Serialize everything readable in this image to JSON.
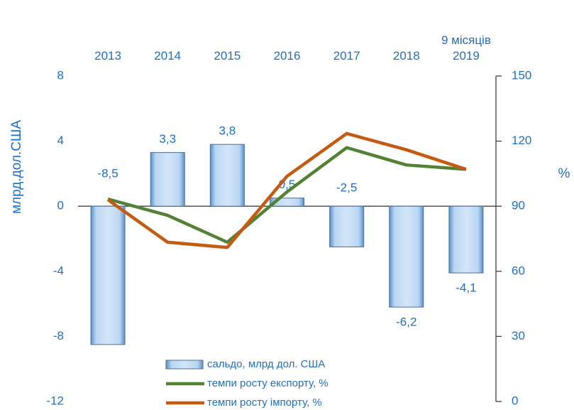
{
  "chart_data": {
    "type": "bar",
    "categories": [
      "2013",
      "2014",
      "2015",
      "2016",
      "2017",
      "2018",
      "9 місяців 2019"
    ],
    "ylabel": "млрд.дол.США",
    "y2label": "%",
    "ylim": [
      -12,
      8
    ],
    "yticks": [
      -12,
      -8,
      -4,
      0,
      4,
      8
    ],
    "y2lim": [
      0,
      150
    ],
    "y2ticks": [
      0,
      30,
      60,
      90,
      120,
      150
    ],
    "series": [
      {
        "name": "сальдо, млрд дол. США",
        "type": "bar",
        "color": "#9dc3e6",
        "values": [
          -8.5,
          3.3,
          3.8,
          0.5,
          -2.5,
          -6.2,
          -4.1
        ],
        "value_labels": [
          "-8,5",
          "3,3",
          "3,8",
          "0,5",
          "-2,5",
          "-6,2",
          "-4,1"
        ]
      },
      {
        "name": "темпи росту експорту, %",
        "type": "line",
        "axis": "y2",
        "color": "#548235",
        "values": [
          93.3,
          85.8,
          73.4,
          96.6,
          117,
          109,
          107
        ]
      },
      {
        "name": "темпи росту імпорту, %",
        "type": "line",
        "axis": "y2",
        "color": "#c55a11",
        "values": [
          93,
          73.4,
          71,
          103.8,
          123.5,
          116,
          107
        ]
      }
    ],
    "legend": "bottom"
  }
}
